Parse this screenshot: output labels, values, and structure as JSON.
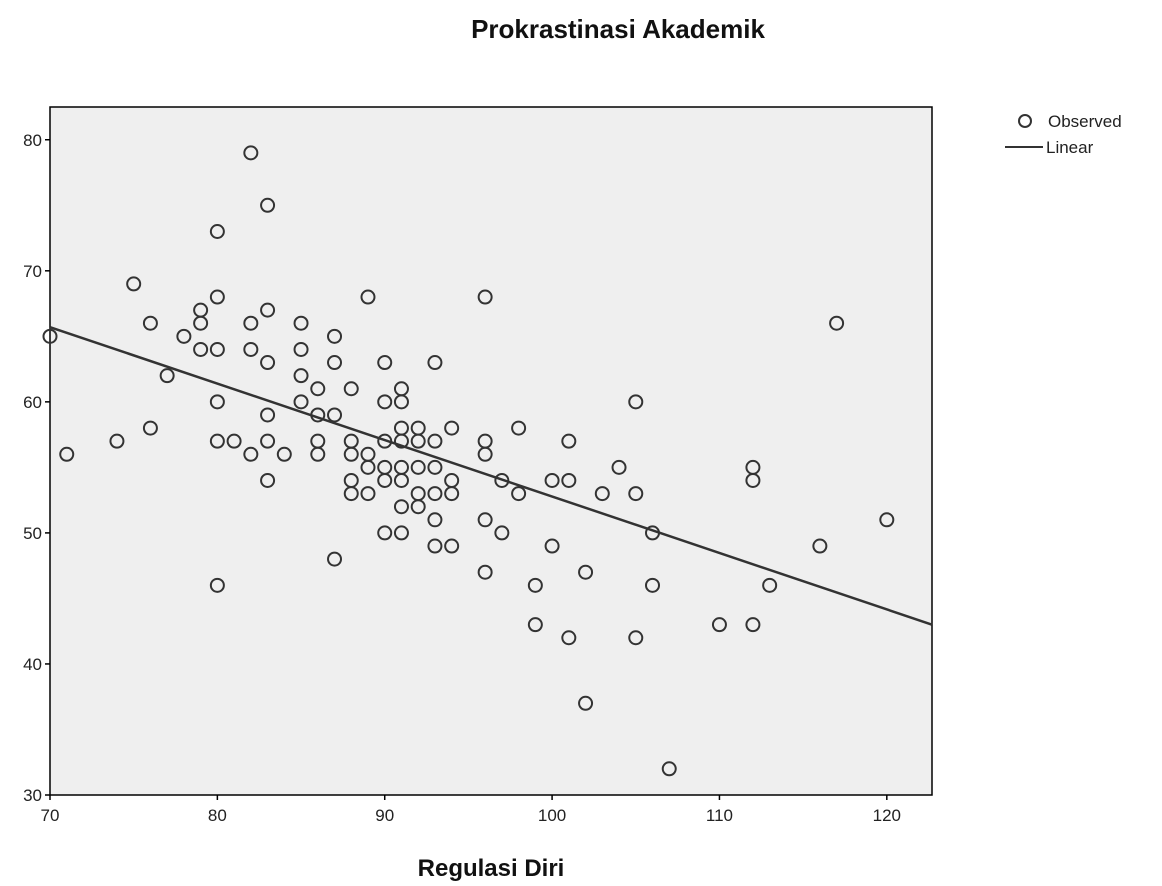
{
  "chart_data": {
    "type": "scatter",
    "title": "Prokrastinasi Akademik",
    "xlabel": "Regulasi Diri",
    "ylabel": "",
    "xlim": [
      70,
      122.7
    ],
    "ylim": [
      30,
      82.5
    ],
    "xticks": [
      70,
      80,
      90,
      100,
      110,
      120
    ],
    "yticks": [
      30,
      40,
      50,
      60,
      70,
      80
    ],
    "grid": false,
    "legend_position": "top-right",
    "colors": {
      "plot_background": "#efefef",
      "marker": "#333333",
      "line": "#333333",
      "axis": "#000000"
    },
    "series": [
      {
        "name": "Observed",
        "kind": "points",
        "points": [
          [
            70,
            65
          ],
          [
            71,
            56
          ],
          [
            74,
            57
          ],
          [
            75,
            69
          ],
          [
            76,
            66
          ],
          [
            76,
            58
          ],
          [
            77,
            62
          ],
          [
            78,
            65
          ],
          [
            79,
            67
          ],
          [
            79,
            66
          ],
          [
            79,
            64
          ],
          [
            80,
            73
          ],
          [
            80,
            68
          ],
          [
            80,
            64
          ],
          [
            80,
            60
          ],
          [
            80,
            57
          ],
          [
            80,
            46
          ],
          [
            81,
            57
          ],
          [
            82,
            79
          ],
          [
            82,
            66
          ],
          [
            82,
            64
          ],
          [
            82,
            56
          ],
          [
            83,
            75
          ],
          [
            83,
            67
          ],
          [
            83,
            63
          ],
          [
            83,
            59
          ],
          [
            83,
            57
          ],
          [
            83,
            54
          ],
          [
            84,
            56
          ],
          [
            85,
            66
          ],
          [
            85,
            64
          ],
          [
            85,
            62
          ],
          [
            85,
            60
          ],
          [
            86,
            61
          ],
          [
            86,
            59
          ],
          [
            86,
            57
          ],
          [
            86,
            56
          ],
          [
            87,
            65
          ],
          [
            87,
            63
          ],
          [
            87,
            59
          ],
          [
            87,
            48
          ],
          [
            88,
            61
          ],
          [
            88,
            57
          ],
          [
            88,
            56
          ],
          [
            88,
            54
          ],
          [
            88,
            53
          ],
          [
            89,
            68
          ],
          [
            89,
            56
          ],
          [
            89,
            55
          ],
          [
            89,
            53
          ],
          [
            90,
            63
          ],
          [
            90,
            60
          ],
          [
            90,
            57
          ],
          [
            90,
            55
          ],
          [
            90,
            54
          ],
          [
            90,
            50
          ],
          [
            91,
            61
          ],
          [
            91,
            60
          ],
          [
            91,
            58
          ],
          [
            91,
            57
          ],
          [
            91,
            55
          ],
          [
            91,
            54
          ],
          [
            91,
            52
          ],
          [
            91,
            50
          ],
          [
            92,
            58
          ],
          [
            92,
            57
          ],
          [
            92,
            55
          ],
          [
            92,
            53
          ],
          [
            92,
            52
          ],
          [
            93,
            63
          ],
          [
            93,
            57
          ],
          [
            93,
            55
          ],
          [
            93,
            53
          ],
          [
            93,
            51
          ],
          [
            93,
            49
          ],
          [
            94,
            58
          ],
          [
            94,
            54
          ],
          [
            94,
            53
          ],
          [
            94,
            49
          ],
          [
            96,
            68
          ],
          [
            96,
            57
          ],
          [
            96,
            56
          ],
          [
            96,
            51
          ],
          [
            96,
            47
          ],
          [
            97,
            54
          ],
          [
            97,
            50
          ],
          [
            98,
            58
          ],
          [
            98,
            53
          ],
          [
            99,
            46
          ],
          [
            99,
            43
          ],
          [
            100,
            54
          ],
          [
            100,
            49
          ],
          [
            101,
            57
          ],
          [
            101,
            54
          ],
          [
            101,
            42
          ],
          [
            102,
            47
          ],
          [
            102,
            37
          ],
          [
            103,
            53
          ],
          [
            104,
            55
          ],
          [
            105,
            60
          ],
          [
            105,
            53
          ],
          [
            105,
            42
          ],
          [
            106,
            50
          ],
          [
            106,
            46
          ],
          [
            107,
            32
          ],
          [
            110,
            43
          ],
          [
            112,
            55
          ],
          [
            112,
            54
          ],
          [
            112,
            43
          ],
          [
            113,
            46
          ],
          [
            116,
            49
          ],
          [
            117,
            66
          ],
          [
            120,
            51
          ]
        ]
      },
      {
        "name": "Linear",
        "kind": "line",
        "x": [
          70,
          122.7
        ],
        "y": [
          65.7,
          43
        ]
      }
    ]
  }
}
